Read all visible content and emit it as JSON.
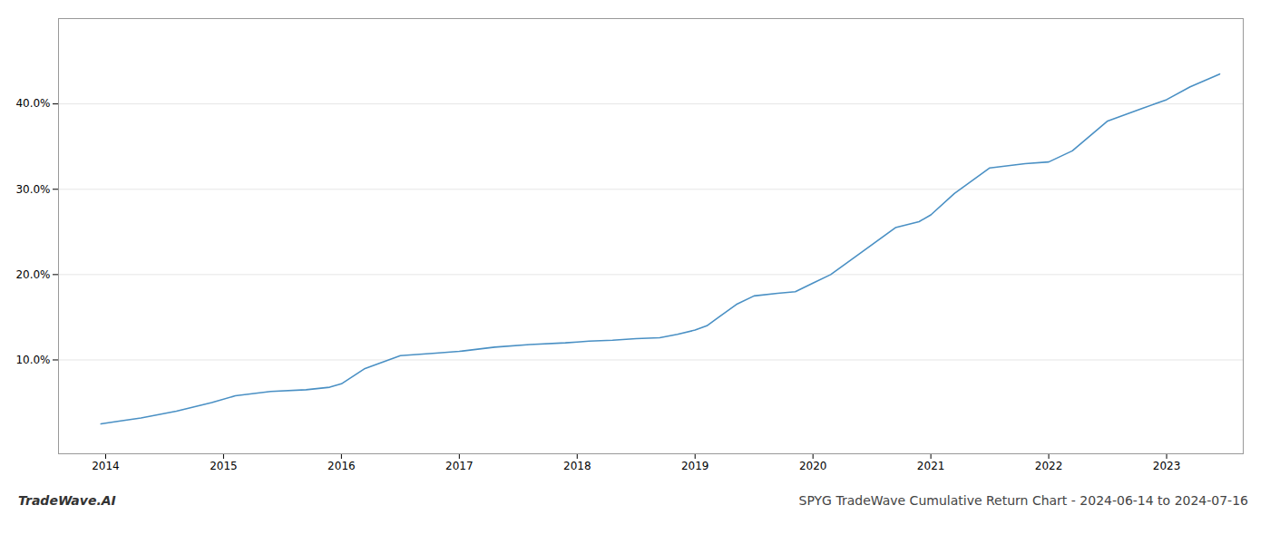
{
  "chart_data": {
    "type": "line",
    "title": "SPYG TradeWave Cumulative Return Chart - 2024-06-14 to 2024-07-16",
    "annotations": [
      "TradeWave.AI"
    ],
    "color": "#4a90c4",
    "x": [
      2013.96,
      2014.1,
      2014.3,
      2014.6,
      2014.9,
      2015.1,
      2015.4,
      2015.7,
      2015.9,
      2016.0,
      2016.2,
      2016.5,
      2016.8,
      2017.0,
      2017.3,
      2017.6,
      2017.9,
      2018.0,
      2018.1,
      2018.3,
      2018.5,
      2018.7,
      2018.85,
      2019.0,
      2019.1,
      2019.2,
      2019.35,
      2019.5,
      2019.7,
      2019.85,
      2020.0,
      2020.15,
      2020.4,
      2020.7,
      2020.9,
      2021.0,
      2021.2,
      2021.5,
      2021.8,
      2022.0,
      2022.2,
      2022.5,
      2022.8,
      2023.0,
      2023.2,
      2023.45
    ],
    "values": [
      2.5,
      2.8,
      3.2,
      4.0,
      5.0,
      5.8,
      6.3,
      6.5,
      6.8,
      7.2,
      9.0,
      10.5,
      10.8,
      11.0,
      11.5,
      11.8,
      12.0,
      12.1,
      12.2,
      12.3,
      12.5,
      12.6,
      13.0,
      13.5,
      14.0,
      15.0,
      16.5,
      17.5,
      17.8,
      18.0,
      19.0,
      20.0,
      22.5,
      25.5,
      26.2,
      27.0,
      29.5,
      32.5,
      33.0,
      33.2,
      34.5,
      38.0,
      39.5,
      40.5,
      42.0,
      43.5
    ],
    "xlim": [
      2013.6,
      2023.65
    ],
    "xticks": [
      2014,
      2015,
      2016,
      2017,
      2018,
      2019,
      2020,
      2021,
      2022,
      2023
    ],
    "ylim": [
      -1,
      50
    ],
    "yticks": [
      {
        "value": 10.0,
        "label": "10.0%"
      },
      {
        "value": 20.0,
        "label": "20.0%"
      },
      {
        "value": 30.0,
        "label": "30.0%"
      },
      {
        "value": 40.0,
        "label": "40.0%"
      }
    ],
    "grid": true
  }
}
